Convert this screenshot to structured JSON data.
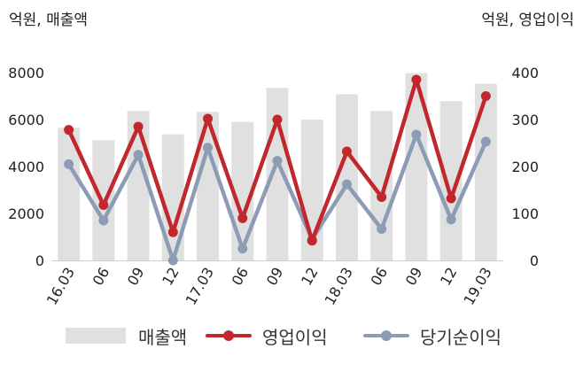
{
  "chart_data": {
    "type": "bar",
    "left_unit_label": "억원, 매출액",
    "right_unit_label": "억원, 영업이익",
    "categories": [
      "16.03",
      "06",
      "09",
      "12",
      "17.03",
      "06",
      "09",
      "12",
      "18.03",
      "06",
      "09",
      "12",
      "19.03"
    ],
    "y_left": {
      "range": [
        0,
        8000
      ],
      "ticks": [
        "8000",
        "6000",
        "4000",
        "2000",
        "0"
      ]
    },
    "y_right": {
      "range": [
        0,
        400
      ],
      "ticks": [
        "400",
        "300",
        "200",
        "100",
        "0"
      ]
    },
    "series": [
      {
        "name": "매출액",
        "type": "bar",
        "axis": "left",
        "color": "#e0e0e0",
        "values": [
          5650,
          5120,
          6370,
          5370,
          6330,
          5900,
          7350,
          6000,
          7080,
          6370,
          7980,
          6780,
          7520
        ]
      },
      {
        "name": "영업이익",
        "type": "line",
        "axis": "right",
        "color": "#c1272d",
        "values": [
          278,
          118,
          285,
          60,
          302,
          90,
          300,
          42,
          232,
          135,
          385,
          132,
          350
        ]
      },
      {
        "name": "당기순이익",
        "type": "line",
        "axis": "right",
        "color": "#8d9cb5",
        "values": [
          205,
          85,
          225,
          0,
          240,
          25,
          212,
          45,
          162,
          67,
          268,
          87,
          253
        ]
      }
    ],
    "grid": false,
    "legend": "bottom"
  }
}
